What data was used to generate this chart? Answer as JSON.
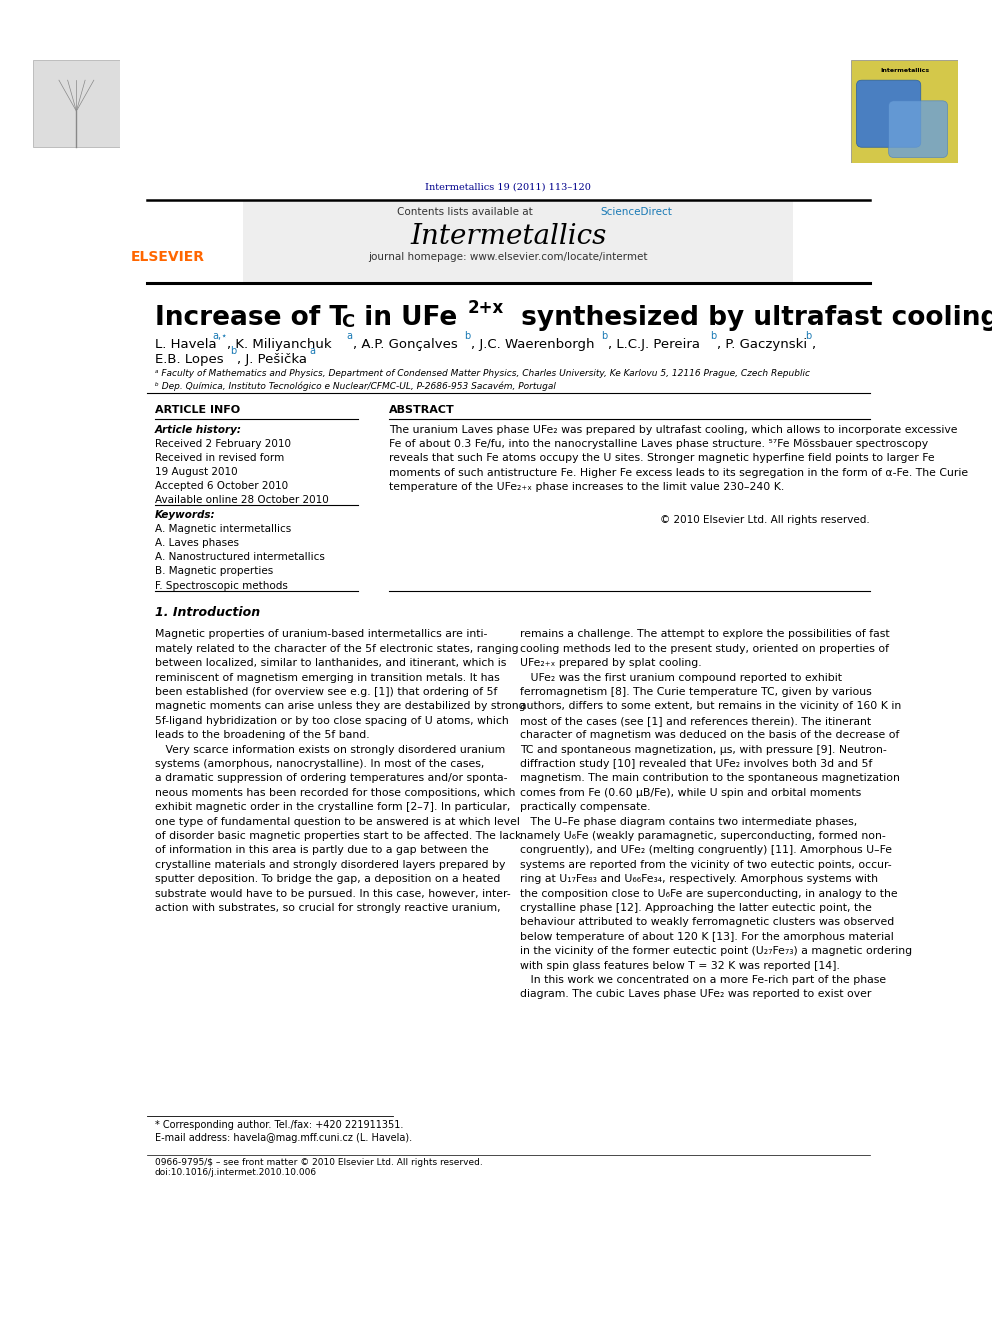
{
  "page_width": 9.92,
  "page_height": 13.23,
  "dpi": 100,
  "background_color": "#ffffff",
  "header_doi": "Intermetallics 19 (2011) 113–120",
  "header_doi_color": "#00008B",
  "journal_name": "Intermetallics",
  "contents_text": "Contents lists available at ",
  "sciencedirect_text": "ScienceDirect",
  "sciencedirect_color": "#1a7ab5",
  "journal_homepage": "journal homepage: www.elsevier.com/locate/intermet",
  "elsevier_color": "#FF6600",
  "affil_a": "ᵃ Faculty of Mathematics and Physics, Department of Condensed Matter Physics, Charles University, Ke Karlovu 5, 12116 Prague, Czech Republic",
  "affil_b": "ᵇ Dep. Química, Instituto Tecnológico e Nuclear/CFMC-UL, P-2686-953 Sacavém, Portugal",
  "article_info_header": "ARTICLE INFO",
  "abstract_header": "ABSTRACT",
  "article_history_label": "Article history:",
  "received1": "Received 2 February 2010",
  "received2": "Received in revised form",
  "received2b": "19 August 2010",
  "accepted": "Accepted 6 October 2010",
  "available": "Available online 28 October 2010",
  "keywords_label": "Keywords:",
  "keyword1": "A. Magnetic intermetallics",
  "keyword2": "A. Laves phases",
  "keyword3": "A. Nanostructured intermetallics",
  "keyword4": "B. Magnetic properties",
  "keyword5": "F. Spectroscopic methods",
  "copyright": "© 2010 Elsevier Ltd. All rights reserved.",
  "intro_header": "1. Introduction",
  "footer_line1": "0966-9795/$ – see front matter © 2010 Elsevier Ltd. All rights reserved.",
  "footer_line2": "doi:10.1016/j.intermet.2010.10.006",
  "footnote_star": "* Corresponding author. Tel./fax: +420 221911351.",
  "footnote_email": "E-mail address: havela@mag.mff.cuni.cz (L. Havela)."
}
